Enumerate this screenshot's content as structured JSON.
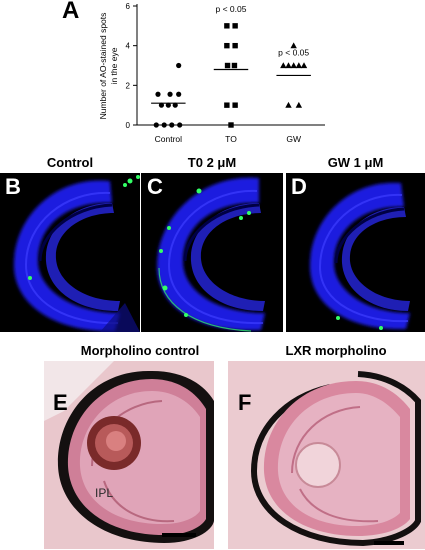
{
  "panels": {
    "A": "A",
    "B": "B",
    "C": "C",
    "D": "D",
    "E": "E",
    "F": "F"
  },
  "chart_data": {
    "type": "scatter",
    "ylabel": "Number of AO-stained spots in the eye",
    "ylim": [
      0,
      6
    ],
    "yticks": [
      "0",
      "2",
      "4",
      "6"
    ],
    "categories": [
      "Control",
      "TO",
      "GW"
    ],
    "series": [
      {
        "category": "Control",
        "marker": "circle",
        "points": [
          [
            0.3,
            3
          ],
          [
            0.05,
            1.55
          ],
          [
            -0.3,
            1.55
          ],
          [
            0.3,
            1.55
          ],
          [
            0,
            1
          ],
          [
            -0.2,
            1
          ],
          [
            0.2,
            1
          ],
          [
            -0.35,
            0
          ],
          [
            -0.12,
            0
          ],
          [
            0.1,
            0
          ],
          [
            0.33,
            0
          ]
        ],
        "mean": 1.1
      },
      {
        "category": "TO",
        "marker": "square",
        "points": [
          [
            -0.12,
            5
          ],
          [
            0.12,
            5
          ],
          [
            -0.12,
            4
          ],
          [
            0.12,
            4
          ],
          [
            -0.1,
            3
          ],
          [
            0.1,
            3
          ],
          [
            -0.12,
            1
          ],
          [
            0.12,
            1
          ],
          [
            0,
            0
          ]
        ],
        "mean": 2.8
      },
      {
        "category": "GW",
        "marker": "triangle",
        "points": [
          [
            0,
            4
          ],
          [
            -0.3,
            3
          ],
          [
            -0.15,
            3
          ],
          [
            0,
            3
          ],
          [
            0.15,
            3
          ],
          [
            0.3,
            3
          ],
          [
            -0.15,
            1
          ],
          [
            0.15,
            1
          ]
        ],
        "mean": 2.5
      }
    ],
    "annotations": [
      {
        "category": "TO",
        "text": "p < 0.05",
        "y": 5.7
      },
      {
        "category": "GW",
        "text": "p < 0.05",
        "y": 3.5
      }
    ]
  },
  "fluorescence": {
    "labels": [
      "Control",
      "T0 2 μM",
      "GW 1 μM"
    ]
  },
  "histology": {
    "labels": [
      "Morpholino control",
      "LXR morpholino"
    ],
    "ipl_label": "IPL"
  }
}
